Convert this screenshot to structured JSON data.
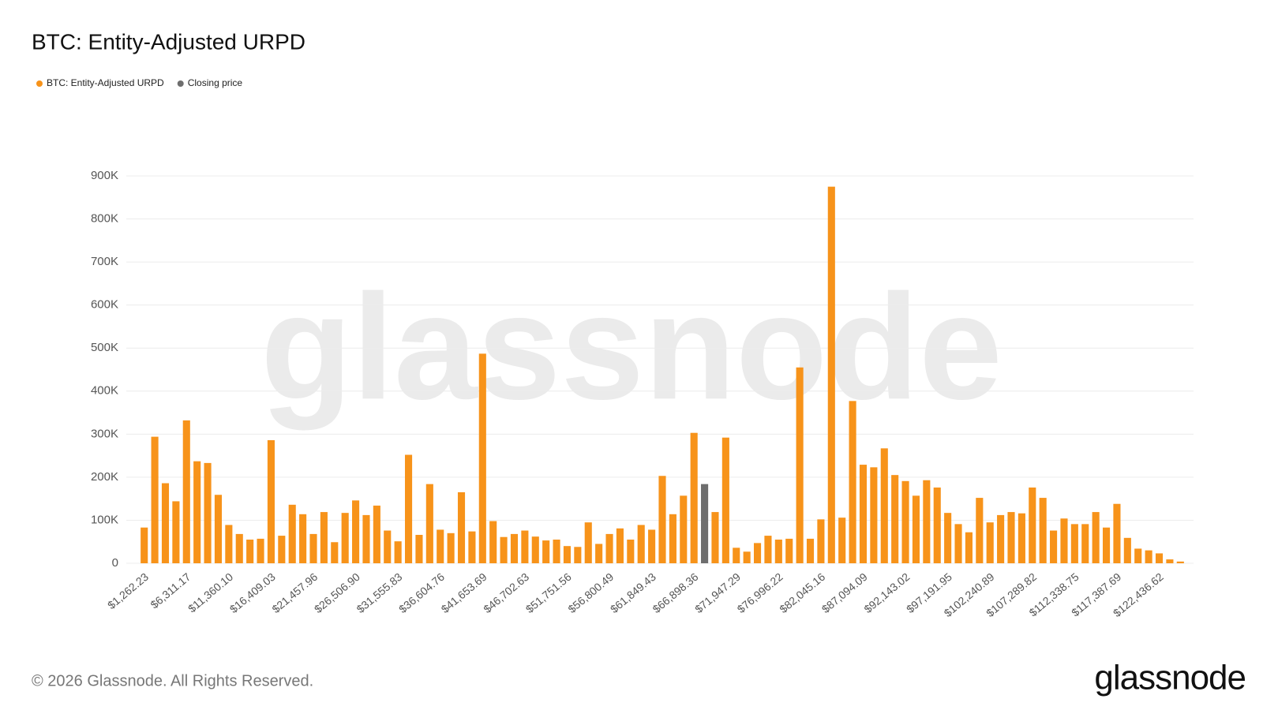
{
  "chart_data": {
    "type": "bar",
    "title": "BTC: Entity-Adjusted URPD",
    "watermark": "glassnode",
    "copyright": "© 2026 Glassnode. All Rights Reserved.",
    "logo": "glassnode",
    "categories": [
      "$1,262.23",
      null,
      null,
      null,
      "$6,311.17",
      null,
      null,
      null,
      "$11,360.10",
      null,
      null,
      null,
      "$16,409.03",
      null,
      null,
      null,
      "$21,457.96",
      null,
      null,
      null,
      "$26,506.90",
      null,
      null,
      null,
      "$31,555.83",
      null,
      null,
      null,
      "$36,604.76",
      null,
      null,
      null,
      "$41,653.69",
      null,
      null,
      null,
      "$46,702.63",
      null,
      null,
      null,
      "$51,751.56",
      null,
      null,
      null,
      "$56,800.49",
      null,
      null,
      null,
      "$61,849.43",
      null,
      null,
      null,
      "$66,898.36",
      null,
      null,
      null,
      "$71,947.29",
      null,
      null,
      null,
      "$76,996.22",
      null,
      null,
      null,
      "$82,045.16",
      null,
      null,
      null,
      "$87,094.09",
      null,
      null,
      null,
      "$92,143.02",
      null,
      null,
      null,
      "$97,191.95",
      null,
      null,
      null,
      "$102,240.89",
      null,
      null,
      null,
      "$107,289.82",
      null,
      null,
      null,
      "$112,338.75",
      null,
      null,
      null,
      "$117,387.69",
      null,
      null,
      null,
      "$122,436.62",
      null,
      null
    ],
    "series": [
      {
        "name": "BTC: Entity-Adjusted URPD",
        "color": "#f7931a",
        "values": [
          83000,
          294000,
          186000,
          144000,
          332000,
          237000,
          233000,
          159000,
          89000,
          68000,
          55000,
          57000,
          286000,
          64000,
          136000,
          114000,
          68000,
          119000,
          49000,
          117000,
          146000,
          112000,
          134000,
          76000,
          51000,
          252000,
          66000,
          184000,
          78000,
          70000,
          165000,
          74000,
          487000,
          98000,
          61000,
          68000,
          76000,
          62000,
          53000,
          55000,
          40000,
          38000,
          95000,
          45000,
          68000,
          81000,
          55000,
          89000,
          78000,
          203000,
          114000,
          157000,
          303000,
          null,
          119000,
          292000,
          36000,
          27000,
          47000,
          64000,
          55000,
          57000,
          455000,
          57000,
          102000,
          875000,
          106000,
          377000,
          229000,
          223000,
          267000,
          205000,
          191000,
          157000,
          193000,
          176000,
          117000,
          91000,
          72000,
          152000,
          95000,
          112000,
          119000,
          116000,
          176000,
          152000,
          76000,
          104000,
          91000,
          91000,
          119000,
          83000,
          138000,
          59000,
          34000,
          30000,
          23000,
          9000,
          4000
        ]
      },
      {
        "name": "Closing price",
        "color": "#6e6e6e",
        "values": [
          null,
          null,
          null,
          null,
          null,
          null,
          null,
          null,
          null,
          null,
          null,
          null,
          null,
          null,
          null,
          null,
          null,
          null,
          null,
          null,
          null,
          null,
          null,
          null,
          null,
          null,
          null,
          null,
          null,
          null,
          null,
          null,
          null,
          null,
          null,
          null,
          null,
          null,
          null,
          null,
          null,
          null,
          null,
          null,
          null,
          null,
          null,
          null,
          null,
          null,
          null,
          null,
          null,
          184000,
          null,
          null,
          null,
          null,
          null,
          null,
          null,
          null,
          null,
          null,
          null,
          null,
          null,
          null,
          null,
          null,
          null,
          null,
          null,
          null,
          null,
          null,
          null,
          null,
          null,
          null,
          null,
          null,
          null,
          null,
          null,
          null,
          null,
          null,
          null,
          null,
          null,
          null,
          null,
          null,
          null,
          null,
          null,
          null,
          null
        ]
      }
    ],
    "ylim": [
      0,
      900000
    ],
    "yticks": [
      0,
      {
        "value": 100000,
        "label": "100K"
      },
      {
        "value": 200000,
        "label": "200K"
      },
      {
        "value": 300000,
        "label": "300K"
      },
      {
        "value": 400000,
        "label": "400K"
      },
      {
        "value": 500000,
        "label": "500K"
      },
      {
        "value": 600000,
        "label": "600K"
      },
      {
        "value": 700000,
        "label": "700K"
      },
      {
        "value": 800000,
        "label": "800K"
      },
      {
        "value": 900000,
        "label": "900K"
      }
    ],
    "grid": true
  }
}
